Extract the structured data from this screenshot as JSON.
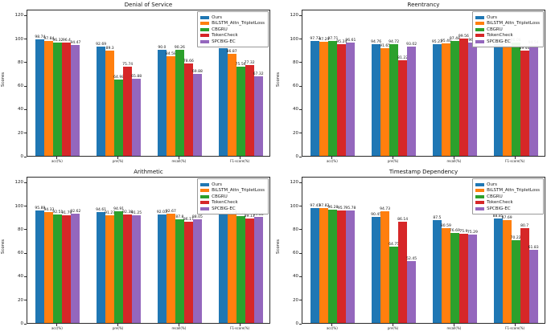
{
  "chart_data": [
    {
      "type": "bar",
      "title": "Denial of Service",
      "xlabel": "",
      "ylabel": "Scores",
      "categories": [
        "acc(%)",
        "pre(%)",
        "recall(%)",
        "F1-score(%)"
      ],
      "yticks": [
        0,
        20,
        40,
        60,
        80,
        100,
        120
      ],
      "ylim": [
        0,
        125
      ],
      "grid": false,
      "legend_position": "upper right",
      "series": [
        {
          "name": "Ours",
          "color": "#1f77b4",
          "values": [
            98.74,
            92.69,
            90.0,
            91.83
          ],
          "labels": [
            "98.74",
            "92.69",
            "90.0",
            "91.83"
          ]
        },
        {
          "name": "BiLSTM_Attn_TripletLoss",
          "color": "#ff7f0e",
          "values": [
            97.84,
            89.3,
            84.58,
            86.87
          ],
          "labels": [
            "97.84",
            "89.3",
            "84.58",
            "86.87"
          ]
        },
        {
          "name": "CBGRU",
          "color": "#2ca02c",
          "values": [
            96.32,
            64.98,
            90.26,
            75.56
          ],
          "labels": [
            "96.32",
            "64.98",
            "90.26",
            "75.56"
          ]
        },
        {
          "name": "TokenCheck",
          "color": "#d62728",
          "values": [
            96.4,
            75.74,
            78.66,
            77.32
          ],
          "labels": [
            "96.4",
            "75.74",
            "78.66",
            "77.32"
          ]
        },
        {
          "name": "SPCBIG-EC",
          "color": "#9467bd",
          "values": [
            94.47,
            65.88,
            69.88,
            67.32
          ],
          "labels": [
            "94.47",
            "65.88",
            "69.88",
            "67.32"
          ]
        }
      ]
    },
    {
      "type": "bar",
      "title": "Reentrancy",
      "xlabel": "",
      "ylabel": "Scores",
      "categories": [
        "acc(%)",
        "pre(%)",
        "recall(%)",
        "F1-score(%)"
      ],
      "yticks": [
        0,
        20,
        40,
        60,
        80,
        100,
        120
      ],
      "ylim": [
        0,
        125
      ],
      "grid": false,
      "legend_position": "upper right",
      "series": [
        {
          "name": "Ours",
          "color": "#1f77b4",
          "values": [
            97.73,
            94.76,
            95.23,
            94.89
          ],
          "labels": [
            "97.73",
            "94.76",
            "95.23",
            "94.89"
          ]
        },
        {
          "name": "BiLSTM_Attn_TripletLoss",
          "color": "#ff7f0e",
          "values": [
            97.24,
            91.65,
            95.4,
            93.66
          ],
          "labels": [
            "97.24",
            "91.65",
            "95.40",
            "93.66"
          ]
        },
        {
          "name": "CBGRU",
          "color": "#2ca02c",
          "values": [
            97.71,
            94.72,
            97.48,
            96.08
          ],
          "labels": [
            "97.71",
            "94.72",
            "97.48",
            "96.08"
          ]
        },
        {
          "name": "TokenCheck",
          "color": "#d62728",
          "values": [
            95.24,
            81.22,
            99.56,
            89.46
          ],
          "labels": [
            "95.24",
            "81.22",
            "99.56",
            "89.46"
          ]
        },
        {
          "name": "SPCBIG-EC",
          "color": "#9467bd",
          "values": [
            96.61,
            93.02,
            96.1,
            94.54
          ],
          "labels": [
            "96.61",
            "93.02",
            "96.1",
            "94.54"
          ]
        }
      ]
    },
    {
      "type": "bar",
      "title": "Arithmetic",
      "xlabel": "",
      "ylabel": "Scores",
      "categories": [
        "acc(%)",
        "pre(%)",
        "recall(%)",
        "F1-score(%)"
      ],
      "yticks": [
        0,
        20,
        40,
        60,
        80,
        100,
        120
      ],
      "ylim": [
        0,
        125
      ],
      "grid": false,
      "legend_position": "upper right",
      "series": [
        {
          "name": "Ours",
          "color": "#1f77b4",
          "values": [
            95.89,
            94.61,
            92.03,
            92.9
          ],
          "labels": [
            "95.89",
            "94.61",
            "92.03",
            "92.9"
          ]
        },
        {
          "name": "BiLSTM_Attn_TripletLoss",
          "color": "#ff7f0e",
          "values": [
            94.33,
            91.27,
            92.67,
            91.94
          ],
          "labels": [
            "94.33",
            "91.27",
            "92.67",
            "91.94"
          ]
        },
        {
          "name": "CBGRU",
          "color": "#2ca02c",
          "values": [
            92.51,
            94.91,
            87.8,
            90.79
          ],
          "labels": [
            "92.51",
            "94.91",
            "87.8",
            "90.79"
          ]
        },
        {
          "name": "TokenCheck",
          "color": "#d62728",
          "values": [
            91.79,
            92.38,
            86.17,
            89.13
          ],
          "labels": [
            "91.79",
            "92.38",
            "86.17",
            "89.13"
          ]
        },
        {
          "name": "SPCBIG-EC",
          "color": "#9467bd",
          "values": [
            92.62,
            91.25,
            88.05,
            89.86
          ],
          "labels": [
            "92.62",
            "91.25",
            "88.05",
            "89.86"
          ]
        }
      ]
    },
    {
      "type": "bar",
      "title": "Timestamp Dependency",
      "xlabel": "",
      "ylabel": "Scores",
      "categories": [
        "acc(%)",
        "pre(%)",
        "recall(%)",
        "F1-score(%)"
      ],
      "yticks": [
        0,
        20,
        40,
        60,
        80,
        100,
        120
      ],
      "ylim": [
        0,
        125
      ],
      "grid": false,
      "legend_position": "upper right",
      "series": [
        {
          "name": "Ours",
          "color": "#1f77b4",
          "values": [
            97.43,
            90.45,
            87.5,
            88.85
          ],
          "labels": [
            "97.43",
            "90.45",
            "87.5",
            "88.85"
          ]
        },
        {
          "name": "BiLSTM_Attn_TripletLoss",
          "color": "#ff7f0e",
          "values": [
            97.82,
            94.73,
            80.59,
            87.69
          ],
          "labels": [
            "97.82",
            "94.73",
            "80.59",
            "87.69"
          ]
        },
        {
          "name": "CBGRU",
          "color": "#2ca02c",
          "values": [
            96.28,
            64.75,
            76.69,
            70.22
          ],
          "labels": [
            "96.28",
            "64.75",
            "76.69",
            "70.22"
          ]
        },
        {
          "name": "TokenCheck",
          "color": "#d62728",
          "values": [
            95.7,
            86.14,
            75.9,
            80.7
          ],
          "labels": [
            "95.7",
            "86.14",
            "75.9",
            "80.7"
          ]
        },
        {
          "name": "SPCBIG-EC",
          "color": "#9467bd",
          "values": [
            95.78,
            52.45,
            75.29,
            61.83
          ],
          "labels": [
            "95.78",
            "52.45",
            "75.29",
            "61.83"
          ]
        }
      ]
    }
  ]
}
